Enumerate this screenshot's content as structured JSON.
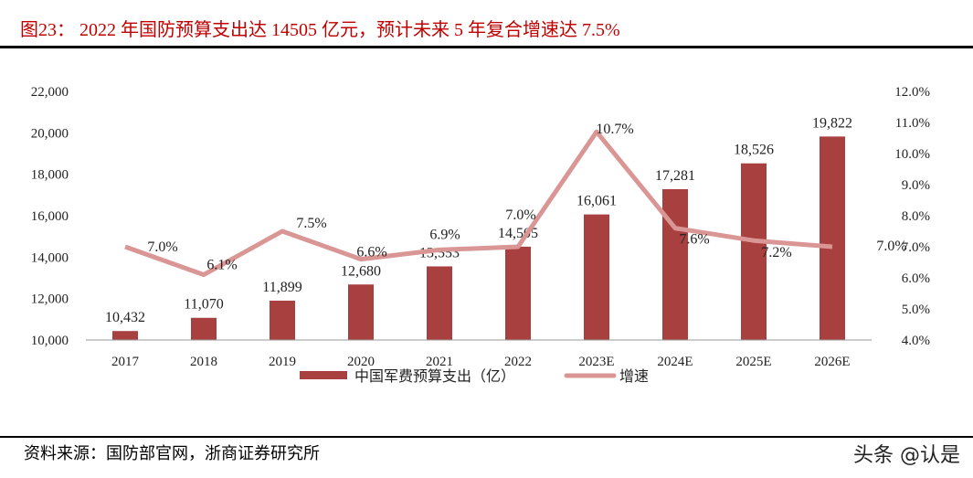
{
  "title": "图23： 2022 年国防预算支出达 14505 亿元，预计未来 5 年复合增速达 7.5%",
  "source": "资料来源：国防部官网，浙商证券研究所",
  "watermark": "头条 @认是",
  "chart_data": {
    "type": "bar+line",
    "categories": [
      "2017",
      "2018",
      "2019",
      "2020",
      "2021",
      "2022",
      "2023E",
      "2024E",
      "2025E",
      "2026E"
    ],
    "series": [
      {
        "name": "中国军费预算支出（亿）",
        "type": "bar",
        "axis": "left",
        "color": "#a8403f",
        "values": [
          10432,
          11070,
          11899,
          12680,
          13553,
          14505,
          16061,
          17281,
          18526,
          19822
        ],
        "labels": [
          "10,432",
          "11,070",
          "11,899",
          "12,680",
          "13,553",
          "14,505",
          "16,061",
          "17,281",
          "18,526",
          "19,822"
        ]
      },
      {
        "name": "增速",
        "type": "line",
        "axis": "right",
        "color": "#d99694",
        "values": [
          7.0,
          6.1,
          7.5,
          6.6,
          6.9,
          7.0,
          10.7,
          7.6,
          7.2,
          7.0
        ],
        "labels": [
          "7.0%",
          "6.1%",
          "7.5%",
          "6.6%",
          "6.9%",
          "7.0%",
          "10.7%",
          "7.6%",
          "7.2%",
          "7.0%"
        ]
      }
    ],
    "left_axis": {
      "min": 10000,
      "max": 22000,
      "ticks": [
        "10,000",
        "12,000",
        "14,000",
        "16,000",
        "18,000",
        "20,000",
        "22,000"
      ]
    },
    "right_axis": {
      "min": 4.0,
      "max": 12.0,
      "ticks": [
        "4.0%",
        "5.0%",
        "6.0%",
        "7.0%",
        "8.0%",
        "9.0%",
        "10.0%",
        "11.0%",
        "12.0%"
      ]
    },
    "grid": false,
    "legend": "bottom"
  }
}
